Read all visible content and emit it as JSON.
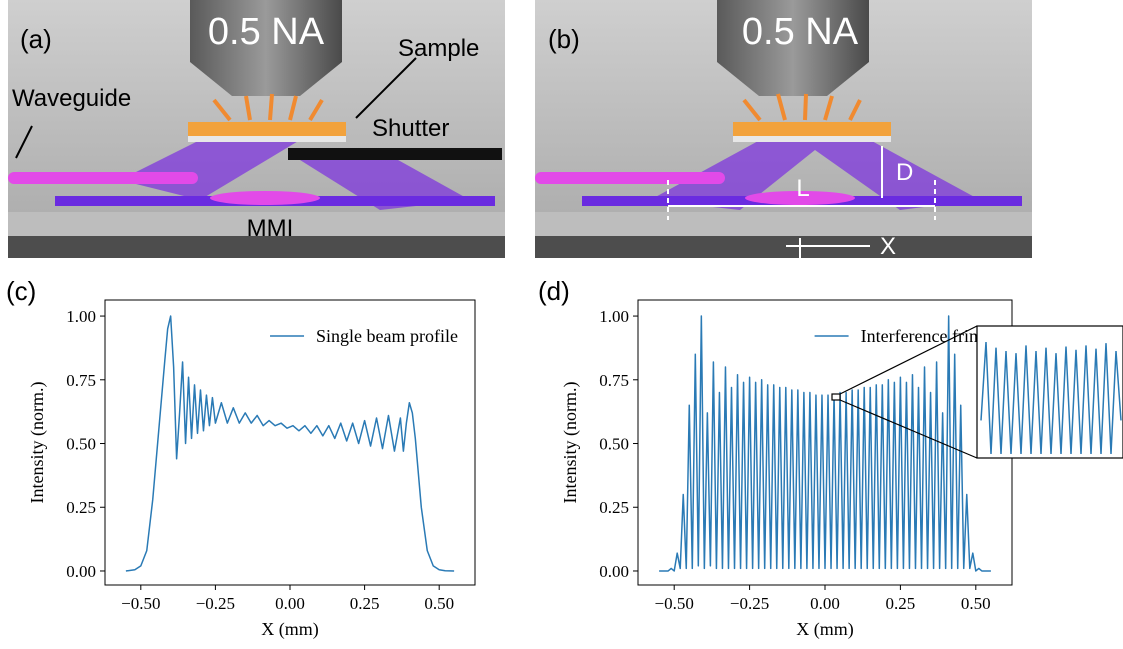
{
  "diagram": {
    "a": {
      "label": "(a)",
      "objective": "0.5 NA",
      "sample": "Sample",
      "waveguide": "Waveguide",
      "shutter": "Shutter",
      "mmi": "MMI"
    },
    "b": {
      "label": "(b)",
      "objective": "0.5 NA",
      "length": "L",
      "distance": "D",
      "axis": "X"
    }
  },
  "chart_data": [
    {
      "type": "line",
      "panel_label": "(c)",
      "xlabel": "X (mm)",
      "ylabel": "Intensity (norm.)",
      "legend": "upper right",
      "xlim": [
        -0.62,
        0.62
      ],
      "ylim": [
        -0.055,
        1.063
      ],
      "xticks": [
        {
          "value": -0.5,
          "label": "−0.50"
        },
        {
          "value": -0.25,
          "label": "−0.25"
        },
        {
          "value": 0,
          "label": "0.00"
        },
        {
          "value": 0.25,
          "label": "0.25"
        },
        {
          "value": 0.5,
          "label": "0.50"
        }
      ],
      "yticks": [
        {
          "value": 0,
          "label": "0.00"
        },
        {
          "value": 0.25,
          "label": "0.25"
        },
        {
          "value": 0.5,
          "label": "0.50"
        },
        {
          "value": 0.75,
          "label": "0.75"
        },
        {
          "value": 1,
          "label": "1.00"
        }
      ],
      "x": [
        -0.55,
        -0.52,
        -0.5,
        -0.48,
        -0.46,
        -0.44,
        -0.42,
        -0.41,
        -0.4,
        -0.39,
        -0.38,
        -0.37,
        -0.36,
        -0.35,
        -0.34,
        -0.33,
        -0.32,
        -0.31,
        -0.3,
        -0.29,
        -0.28,
        -0.27,
        -0.26,
        -0.25,
        -0.23,
        -0.21,
        -0.19,
        -0.17,
        -0.15,
        -0.13,
        -0.11,
        -0.09,
        -0.07,
        -0.05,
        -0.03,
        -0.01,
        0.01,
        0.03,
        0.05,
        0.07,
        0.09,
        0.11,
        0.13,
        0.15,
        0.17,
        0.19,
        0.21,
        0.23,
        0.25,
        0.27,
        0.29,
        0.31,
        0.33,
        0.35,
        0.37,
        0.38,
        0.39,
        0.4,
        0.41,
        0.42,
        0.44,
        0.46,
        0.48,
        0.5,
        0.52,
        0.55
      ],
      "series": [
        {
          "name": "Single beam profile",
          "color": "#2a7ab5",
          "values": [
            0,
            0.005,
            0.02,
            0.08,
            0.28,
            0.55,
            0.82,
            0.95,
            1.0,
            0.8,
            0.44,
            0.62,
            0.82,
            0.5,
            0.76,
            0.52,
            0.73,
            0.54,
            0.71,
            0.55,
            0.69,
            0.57,
            0.68,
            0.58,
            0.66,
            0.58,
            0.64,
            0.58,
            0.62,
            0.58,
            0.61,
            0.57,
            0.59,
            0.57,
            0.58,
            0.56,
            0.57,
            0.55,
            0.57,
            0.54,
            0.57,
            0.53,
            0.57,
            0.52,
            0.58,
            0.51,
            0.58,
            0.5,
            0.59,
            0.49,
            0.6,
            0.48,
            0.61,
            0.47,
            0.6,
            0.47,
            0.58,
            0.66,
            0.62,
            0.52,
            0.25,
            0.08,
            0.02,
            0.005,
            0.001,
            0
          ]
        }
      ]
    },
    {
      "type": "line",
      "panel_label": "(d)",
      "xlabel": "X (mm)",
      "ylabel": "Intensity (norm.)",
      "legend": "upper right",
      "xlim": [
        -0.62,
        0.62
      ],
      "ylim": [
        -0.055,
        1.063
      ],
      "xticks": [
        {
          "value": -0.5,
          "label": "−0.50"
        },
        {
          "value": -0.25,
          "label": "−0.25"
        },
        {
          "value": 0,
          "label": "0.00"
        },
        {
          "value": 0.25,
          "label": "0.25"
        },
        {
          "value": 0.5,
          "label": "0.50"
        }
      ],
      "yticks": [
        {
          "value": 0,
          "label": "0.00"
        },
        {
          "value": 0.25,
          "label": "0.25"
        },
        {
          "value": 0.5,
          "label": "0.50"
        },
        {
          "value": 0.75,
          "label": "0.75"
        },
        {
          "value": 1,
          "label": "1.00"
        }
      ],
      "x": [
        -0.55,
        -0.54,
        -0.53,
        -0.52,
        -0.51,
        -0.5,
        -0.49,
        -0.48,
        -0.47,
        -0.46,
        -0.45,
        -0.44,
        -0.43,
        -0.42,
        -0.41,
        -0.4,
        -0.39,
        -0.38,
        -0.37,
        -0.36,
        -0.35,
        -0.34,
        -0.33,
        -0.32,
        -0.31,
        -0.3,
        -0.29,
        -0.28,
        -0.27,
        -0.26,
        -0.25,
        -0.24,
        -0.23,
        -0.22,
        -0.21,
        -0.2,
        -0.19,
        -0.18,
        -0.17,
        -0.16,
        -0.15,
        -0.14,
        -0.13,
        -0.12,
        -0.11,
        -0.1,
        -0.09,
        -0.08,
        -0.07,
        -0.06,
        -0.05,
        -0.04,
        -0.03,
        -0.02,
        -0.01,
        0.0,
        0.01,
        0.02,
        0.03,
        0.04,
        0.05,
        0.06,
        0.07,
        0.08,
        0.09,
        0.1,
        0.11,
        0.12,
        0.13,
        0.14,
        0.15,
        0.16,
        0.17,
        0.18,
        0.19,
        0.2,
        0.21,
        0.22,
        0.23,
        0.24,
        0.25,
        0.26,
        0.27,
        0.28,
        0.29,
        0.3,
        0.31,
        0.32,
        0.33,
        0.34,
        0.35,
        0.36,
        0.37,
        0.38,
        0.39,
        0.4,
        0.41,
        0.42,
        0.43,
        0.44,
        0.45,
        0.46,
        0.47,
        0.48,
        0.49,
        0.5,
        0.51,
        0.52,
        0.53,
        0.54,
        0.55
      ],
      "series": [
        {
          "name": "Interference fringe",
          "color": "#2a7ab5",
          "values": [
            0,
            0,
            0,
            0,
            0.01,
            0,
            0.07,
            0.01,
            0.3,
            0.01,
            0.65,
            0.01,
            0.85,
            0.02,
            1.0,
            0.01,
            0.62,
            0.02,
            0.82,
            0.01,
            0.7,
            0.01,
            0.8,
            0.01,
            0.72,
            0.01,
            0.77,
            0.01,
            0.74,
            0.01,
            0.76,
            0.01,
            0.74,
            0.01,
            0.75,
            0.01,
            0.73,
            0.01,
            0.73,
            0.01,
            0.72,
            0.01,
            0.72,
            0.01,
            0.71,
            0.01,
            0.71,
            0.01,
            0.7,
            0.01,
            0.7,
            0.01,
            0.69,
            0.01,
            0.69,
            0.01,
            0.69,
            0.01,
            0.69,
            0.01,
            0.7,
            0.01,
            0.7,
            0.01,
            0.71,
            0.01,
            0.71,
            0.01,
            0.72,
            0.01,
            0.72,
            0.01,
            0.73,
            0.01,
            0.73,
            0.01,
            0.75,
            0.01,
            0.74,
            0.01,
            0.76,
            0.01,
            0.74,
            0.01,
            0.77,
            0.01,
            0.72,
            0.01,
            0.8,
            0.01,
            0.7,
            0.01,
            0.82,
            0.01,
            0.62,
            0.01,
            1.0,
            0.01,
            0.85,
            0.01,
            0.65,
            0.01,
            0.3,
            0.01,
            0.07,
            0,
            0.01,
            0,
            0,
            0,
            0
          ]
        }
      ],
      "inset": {
        "values": [
          0.3,
          1,
          0,
          0.95,
          0,
          0.92,
          0,
          0.9,
          0,
          0.97,
          0,
          0.92,
          0,
          0.95,
          0,
          0.9,
          0,
          0.96,
          0,
          0.93,
          0,
          0.97,
          0,
          0.94,
          0,
          0.99,
          0,
          0.92,
          0.3
        ]
      }
    }
  ]
}
